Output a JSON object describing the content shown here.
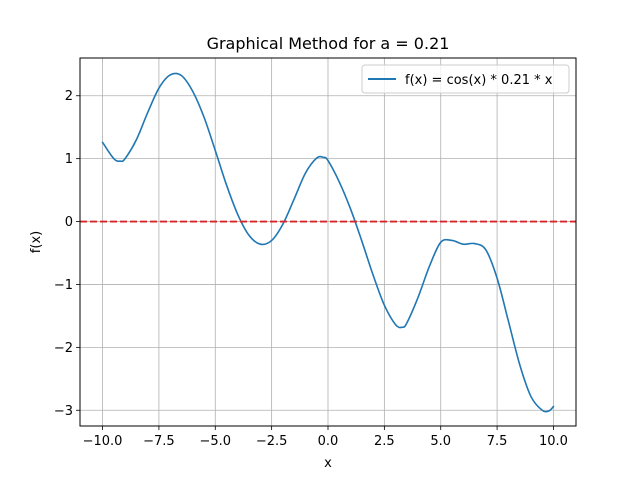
{
  "chart_data": {
    "type": "line",
    "title": "Graphical Method for a = 0.21",
    "xlabel": "x",
    "ylabel": "f(x)",
    "xlim": [
      -11,
      11
    ],
    "ylim": [
      -3.25,
      2.6
    ],
    "xticks": [
      -10,
      -7.5,
      -5,
      -2.5,
      0,
      2.5,
      5,
      7.5,
      10
    ],
    "xtick_labels": [
      "−10.0",
      "−7.5",
      "−5.0",
      "−2.5",
      "0.0",
      "2.5",
      "5.0",
      "7.5",
      "10.0"
    ],
    "yticks": [
      -3,
      -2,
      -1,
      0,
      1,
      2
    ],
    "ytick_labels": [
      "−3",
      "−2",
      "−1",
      "0",
      "1",
      "2"
    ],
    "grid": true,
    "legend_position": "top-right",
    "series": [
      {
        "name": "f(x) = cos(x) * 0.21 * x",
        "color": "#1f77b4",
        "x": [
          -10,
          -9.5,
          -9.2,
          -9,
          -8.5,
          -8,
          -7.5,
          -7,
          -6.5,
          -6,
          -5.5,
          -5,
          -4.5,
          -4,
          -3.5,
          -3,
          -2.5,
          -2,
          -1.5,
          -1,
          -0.5,
          -0.2,
          0,
          0.5,
          1,
          1.5,
          2,
          2.5,
          3,
          3.3,
          3.5,
          4,
          4.5,
          5,
          5.5,
          6,
          6.5,
          7,
          7.5,
          8,
          8.5,
          9,
          9.5,
          9.8,
          10
        ],
        "y": [
          1.26,
          1.0,
          0.96,
          1.0,
          1.3,
          1.73,
          2.12,
          2.33,
          2.32,
          2.07,
          1.66,
          1.13,
          0.58,
          0.11,
          -0.22,
          -0.36,
          -0.3,
          -0.04,
          0.36,
          0.77,
          1.01,
          1.02,
          0.97,
          0.63,
          0.2,
          -0.31,
          -0.85,
          -1.33,
          -1.64,
          -1.68,
          -1.61,
          -1.2,
          -0.71,
          -0.33,
          -0.3,
          -0.36,
          -0.35,
          -0.45,
          -0.9,
          -1.58,
          -2.27,
          -2.78,
          -3.0,
          -3.01,
          -2.94
        ]
      },
      {
        "name": "",
        "color": "#d62728",
        "style": "dashed",
        "x": [
          -11,
          11
        ],
        "y": [
          0,
          0
        ]
      }
    ]
  }
}
